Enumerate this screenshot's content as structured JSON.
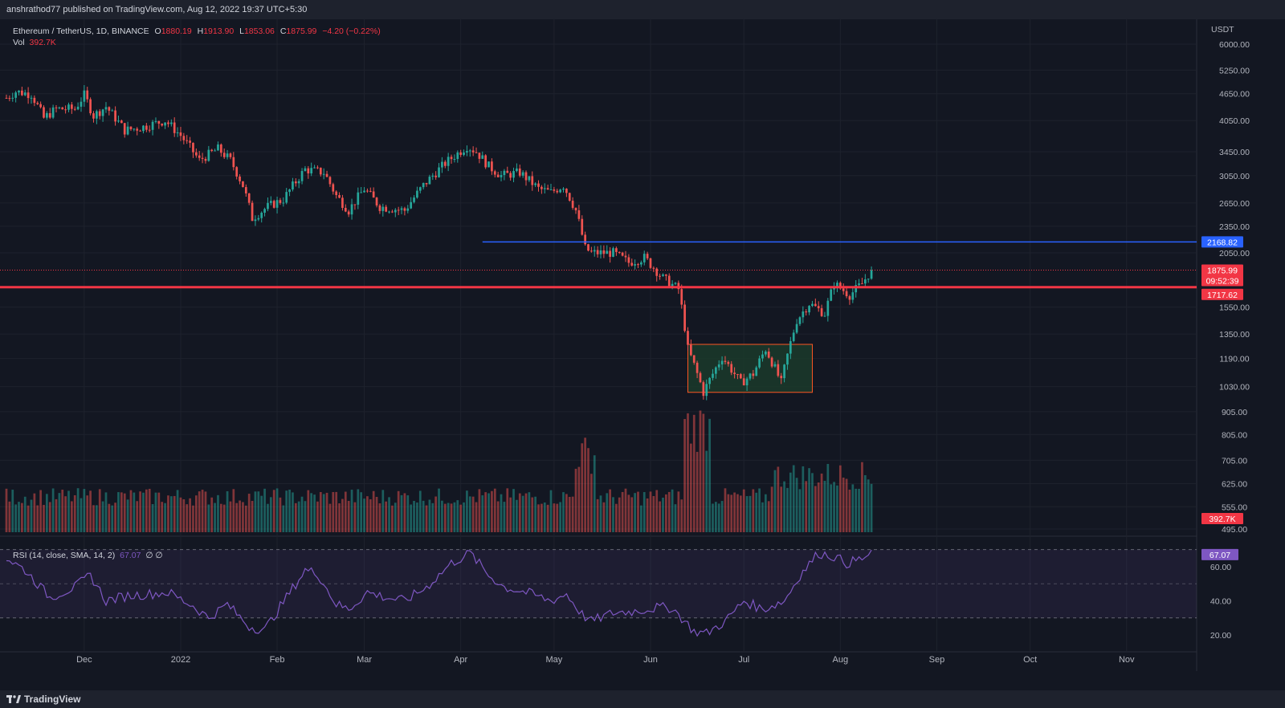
{
  "header": {
    "publisher": "anshrathod77 published on TradingView.com, Aug 12, 2022 19:37 UTC+5:30"
  },
  "legend": {
    "symbol": "Ethereum / TetherUS, 1D, BINANCE",
    "o_label": "O",
    "open": "1880.19",
    "h_label": "H",
    "high": "1913.90",
    "l_label": "L",
    "low": "1853.06",
    "c_label": "C",
    "close": "1875.99",
    "change": "−4.20 (−0.22%)",
    "vol_label": "Vol",
    "volume": "392.7K"
  },
  "rsi_legend": {
    "label": "RSI (14, close, SMA, 14, 2)",
    "value": "67.07",
    "extra": "∅ ∅"
  },
  "footer": {
    "brand": "TradingView"
  },
  "colors": {
    "up": "#26a69a",
    "down": "#ef5350",
    "blue_line": "#2962ff",
    "red_line": "#f23645",
    "rsi": "#7e57c2",
    "box_fill": "#1b3a2a",
    "box_stroke": "#ff5722"
  },
  "chart_data": {
    "type": "candlestick",
    "symbol": "ETHUSDT",
    "interval": "1D",
    "log_scale": true,
    "y_unit": "USDT",
    "y_ticks": [
      495,
      555,
      625,
      705,
      805,
      905,
      1030,
      1190,
      1350,
      1550,
      2050,
      2350,
      2650,
      3050,
      3450,
      4050,
      4650,
      5250,
      6000
    ],
    "x_ticks": [
      "Dec",
      "2022",
      "Feb",
      "Mar",
      "Apr",
      "May",
      "Jun",
      "Jul",
      "Aug",
      "Sep",
      "Oct",
      "Nov"
    ],
    "x_range": [
      "2021-11-06",
      "2022-11-23"
    ],
    "price_labels": [
      {
        "value": "2168.82",
        "color": "#2962ff",
        "kind": "horizontal-ray"
      },
      {
        "value": "1875.99",
        "color": "#f23645",
        "kind": "last-price"
      },
      {
        "value": "09:52:39",
        "color": "#f23645",
        "kind": "countdown"
      },
      {
        "value": "1717.62",
        "color": "#f23645",
        "kind": "horizontal-line"
      },
      {
        "value": "392.7K",
        "color": "#f23645",
        "kind": "volume"
      }
    ],
    "levels": {
      "blue": 2168.82,
      "red": 1717.62
    },
    "rectangle": {
      "from": "2022-06-13",
      "to": "2022-07-23",
      "top": 1280,
      "bottom": 1000
    },
    "close_keypoints": [
      [
        "2021-11-06",
        4550
      ],
      [
        "2021-11-09",
        4700
      ],
      [
        "2021-11-14",
        4640
      ],
      [
        "2021-11-18",
        4100
      ],
      [
        "2021-11-22",
        4300
      ],
      [
        "2021-11-28",
        4300
      ],
      [
        "2021-12-01",
        4620
      ],
      [
        "2021-12-04",
        4150
      ],
      [
        "2021-12-08",
        4350
      ],
      [
        "2021-12-14",
        3850
      ],
      [
        "2021-12-20",
        3920
      ],
      [
        "2021-12-27",
        4050
      ],
      [
        "2022-01-01",
        3750
      ],
      [
        "2022-01-07",
        3300
      ],
      [
        "2022-01-13",
        3500
      ],
      [
        "2022-01-17",
        3300
      ],
      [
        "2022-01-21",
        2900
      ],
      [
        "2022-01-24",
        2450
      ],
      [
        "2022-01-29",
        2600
      ],
      [
        "2022-02-03",
        2700
      ],
      [
        "2022-02-10",
        3150
      ],
      [
        "2022-02-16",
        3100
      ],
      [
        "2022-02-20",
        2750
      ],
      [
        "2022-02-24",
        2550
      ],
      [
        "2022-03-01",
        2850
      ],
      [
        "2022-03-06",
        2600
      ],
      [
        "2022-03-14",
        2550
      ],
      [
        "2022-03-20",
        2900
      ],
      [
        "2022-03-27",
        3250
      ],
      [
        "2022-04-03",
        3550
      ],
      [
        "2022-04-06",
        3450
      ],
      [
        "2022-04-10",
        3200
      ],
      [
        "2022-04-14",
        3050
      ],
      [
        "2022-04-20",
        3100
      ],
      [
        "2022-04-26",
        2850
      ],
      [
        "2022-04-30",
        2800
      ],
      [
        "2022-05-04",
        2900
      ],
      [
        "2022-05-08",
        2550
      ],
      [
        "2022-05-11",
        2100
      ],
      [
        "2022-05-13",
        2050
      ],
      [
        "2022-05-20",
        2050
      ],
      [
        "2022-05-25",
        1950
      ],
      [
        "2022-05-30",
        2000
      ],
      [
        "2022-06-05",
        1800
      ],
      [
        "2022-06-10",
        1700
      ],
      [
        "2022-06-13",
        1250
      ],
      [
        "2022-06-18",
        1000
      ],
      [
        "2022-06-24",
        1200
      ],
      [
        "2022-06-30",
        1050
      ],
      [
        "2022-07-04",
        1100
      ],
      [
        "2022-07-08",
        1250
      ],
      [
        "2022-07-13",
        1050
      ],
      [
        "2022-07-18",
        1450
      ],
      [
        "2022-07-22",
        1580
      ],
      [
        "2022-07-27",
        1500
      ],
      [
        "2022-07-30",
        1750
      ],
      [
        "2022-08-04",
        1650
      ],
      [
        "2022-08-08",
        1750
      ],
      [
        "2022-08-11",
        1876
      ]
    ],
    "rsi": {
      "period": 14,
      "last": 67.07,
      "bands": [
        30,
        50,
        70
      ],
      "y_ticks": [
        20,
        40,
        60
      ],
      "keypoints": [
        [
          "2021-11-06",
          65
        ],
        [
          "2021-11-12",
          58
        ],
        [
          "2021-11-20",
          42
        ],
        [
          "2021-11-28",
          48
        ],
        [
          "2021-12-03",
          55
        ],
        [
          "2021-12-08",
          40
        ],
        [
          "2021-12-15",
          43
        ],
        [
          "2021-12-22",
          44
        ],
        [
          "2021-12-28",
          45
        ],
        [
          "2022-01-05",
          37
        ],
        [
          "2022-01-10",
          30
        ],
        [
          "2022-01-16",
          38
        ],
        [
          "2022-01-23",
          25
        ],
        [
          "2022-01-28",
          23
        ],
        [
          "2022-02-04",
          42
        ],
        [
          "2022-02-10",
          58
        ],
        [
          "2022-02-14",
          56
        ],
        [
          "2022-02-20",
          38
        ],
        [
          "2022-02-24",
          35
        ],
        [
          "2022-03-02",
          45
        ],
        [
          "2022-03-08",
          42
        ],
        [
          "2022-03-14",
          40
        ],
        [
          "2022-03-21",
          48
        ],
        [
          "2022-03-29",
          62
        ],
        [
          "2022-04-04",
          68
        ],
        [
          "2022-04-10",
          55
        ],
        [
          "2022-04-15",
          48
        ],
        [
          "2022-04-22",
          45
        ],
        [
          "2022-04-30",
          40
        ],
        [
          "2022-05-05",
          44
        ],
        [
          "2022-05-10",
          32
        ],
        [
          "2022-05-13",
          28
        ],
        [
          "2022-05-20",
          33
        ],
        [
          "2022-05-27",
          34
        ],
        [
          "2022-06-03",
          36
        ],
        [
          "2022-06-08",
          36
        ],
        [
          "2022-06-12",
          28
        ],
        [
          "2022-06-15",
          22
        ],
        [
          "2022-06-19",
          21
        ],
        [
          "2022-06-25",
          28
        ],
        [
          "2022-07-01",
          40
        ],
        [
          "2022-07-07",
          35
        ],
        [
          "2022-07-14",
          40
        ],
        [
          "2022-07-19",
          55
        ],
        [
          "2022-07-25",
          68
        ],
        [
          "2022-07-30",
          66
        ],
        [
          "2022-08-03",
          62
        ],
        [
          "2022-08-07",
          64
        ],
        [
          "2022-08-11",
          67
        ]
      ]
    }
  }
}
